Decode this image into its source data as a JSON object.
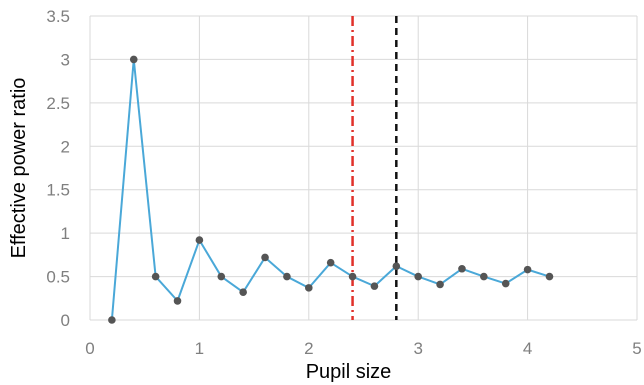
{
  "chart_data": {
    "type": "line",
    "xlabel": "Pupil size",
    "ylabel": "Effective power ratio",
    "xlim": [
      0,
      5
    ],
    "ylim": [
      0,
      3.5
    ],
    "xticks": [
      0,
      1,
      2,
      3,
      4,
      5
    ],
    "yticks": [
      0,
      0.5,
      1,
      1.5,
      2,
      2.5,
      3,
      3.5
    ],
    "xtick_labels": [
      "0",
      "1",
      "2",
      "3",
      "4",
      "5"
    ],
    "ytick_labels": [
      "0",
      "0.5",
      "1",
      "1.5",
      "2",
      "2.5",
      "3",
      "3.5"
    ],
    "grid": true,
    "series": [
      {
        "x": [
          0.2,
          0.4,
          0.6,
          0.8,
          1.0,
          1.2,
          1.4,
          1.6,
          1.8,
          2.0,
          2.2,
          2.4,
          2.6,
          2.8,
          3.0,
          3.2,
          3.4,
          3.6,
          3.8,
          4.0,
          4.2
        ],
        "y": [
          0.0,
          3.0,
          0.5,
          0.22,
          0.92,
          0.5,
          0.32,
          0.72,
          0.5,
          0.37,
          0.66,
          0.5,
          0.39,
          0.62,
          0.5,
          0.41,
          0.59,
          0.5,
          0.42,
          0.58,
          0.5
        ],
        "line_color": "#4aa8d8",
        "marker_color": "#555555"
      }
    ],
    "vertical_lines": [
      {
        "x": 2.4,
        "color": "#e0302a",
        "style": "dash-dot"
      },
      {
        "x": 2.8,
        "color": "#111111",
        "style": "dashed"
      }
    ],
    "grid_color": "#d9d9d9"
  }
}
